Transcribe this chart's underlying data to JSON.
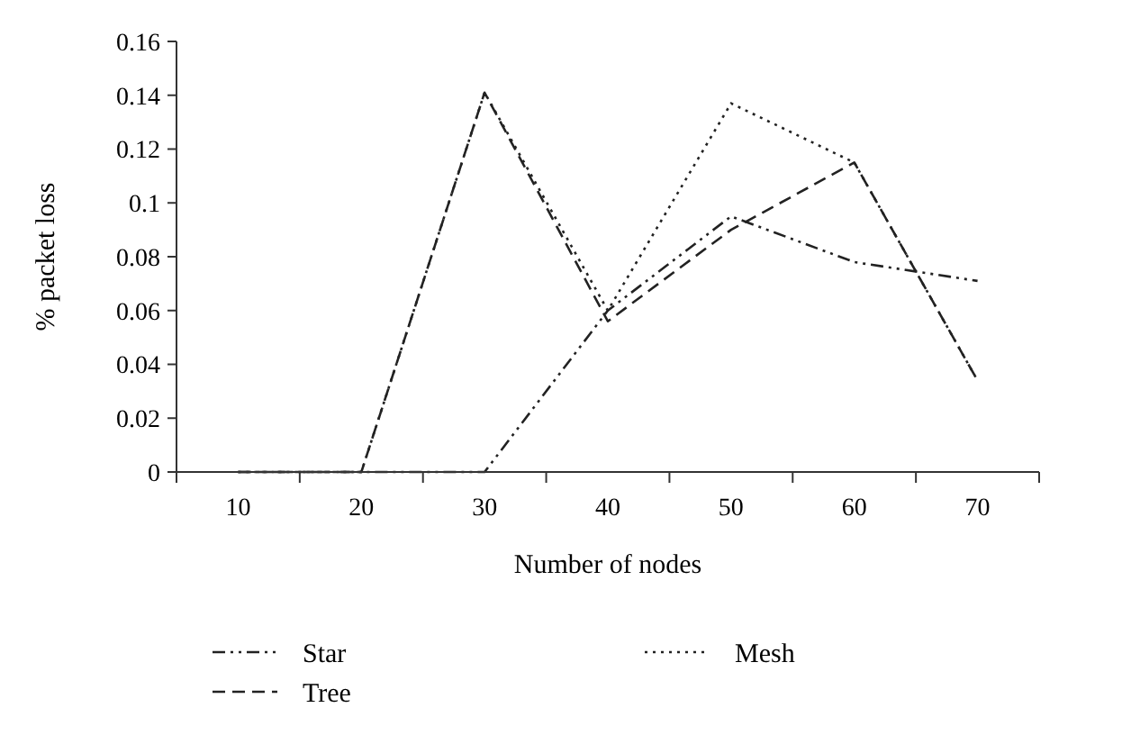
{
  "chart_data": {
    "type": "line",
    "xlabel": "Number of nodes",
    "ylabel": "% packet loss",
    "categories": [
      "10",
      "20",
      "30",
      "40",
      "50",
      "60",
      "70"
    ],
    "ylim": [
      0,
      0.16
    ],
    "yticks": [
      0,
      0.02,
      0.04,
      0.06,
      0.08,
      {
        "value": 0.1,
        "label": "0.1"
      },
      0.12,
      0.14,
      0.16
    ],
    "grid": false,
    "legend": "bottom",
    "series": [
      {
        "name": "Star",
        "color": "#222222",
        "line_style": "dashdot",
        "values": [
          0,
          0,
          0,
          0.06,
          0.095,
          0.078,
          0.071
        ]
      },
      {
        "name": "Mesh",
        "color": "#222222",
        "line_style": "dotted",
        "values": [
          0,
          0,
          0.141,
          0.06,
          0.137,
          0.115,
          0.034
        ]
      },
      {
        "name": "Tree",
        "color": "#222222",
        "line_style": "dashed",
        "values": [
          0,
          0,
          0.141,
          0.056,
          0.09,
          0.115,
          0.034
        ]
      }
    ]
  }
}
